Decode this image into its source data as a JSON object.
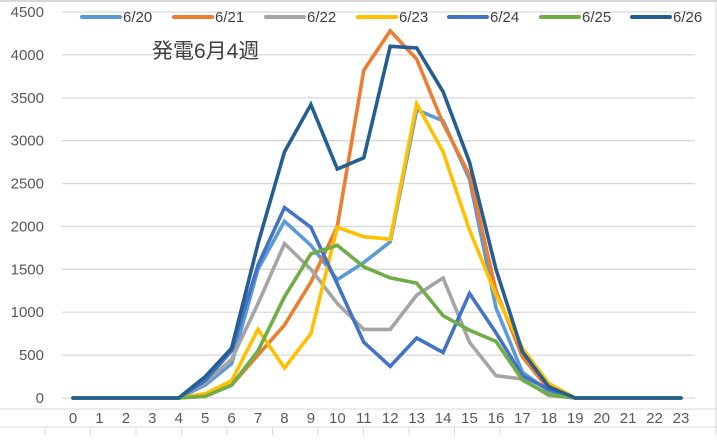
{
  "chart_data": {
    "type": "line",
    "title": "発電6月4週",
    "xlabel": "",
    "ylabel": "",
    "x": [
      0,
      1,
      2,
      3,
      4,
      5,
      6,
      7,
      8,
      9,
      10,
      11,
      12,
      13,
      14,
      15,
      16,
      17,
      18,
      19,
      20,
      21,
      22,
      23
    ],
    "ylim": [
      0,
      4500
    ],
    "yticks": [
      0,
      500,
      1000,
      1500,
      2000,
      2500,
      3000,
      3500,
      4000,
      4500
    ],
    "grid": true,
    "legend_position": "top",
    "series": [
      {
        "name": "6/20",
        "color": "#5B9BD5",
        "values": [
          0,
          0,
          0,
          0,
          0,
          150,
          400,
          1500,
          2060,
          1780,
          1380,
          1580,
          1820,
          3360,
          3230,
          2550,
          1050,
          300,
          80,
          0,
          0,
          0,
          0,
          0
        ]
      },
      {
        "name": "6/21",
        "color": "#ED7D31",
        "values": [
          0,
          0,
          0,
          0,
          0,
          20,
          150,
          500,
          850,
          1350,
          2000,
          3820,
          4280,
          3950,
          3200,
          2600,
          1250,
          480,
          100,
          0,
          0,
          0,
          0,
          0
        ]
      },
      {
        "name": "6/22",
        "color": "#A5A5A5",
        "values": [
          0,
          0,
          0,
          0,
          0,
          180,
          450,
          1100,
          1800,
          1500,
          1100,
          800,
          800,
          1200,
          1400,
          650,
          260,
          220,
          30,
          0,
          0,
          0,
          0,
          0
        ]
      },
      {
        "name": "6/23",
        "color": "#FFC000",
        "values": [
          0,
          0,
          0,
          0,
          0,
          50,
          200,
          800,
          350,
          750,
          1990,
          1880,
          1850,
          3430,
          2870,
          1960,
          1200,
          580,
          170,
          0,
          0,
          0,
          0,
          0
        ]
      },
      {
        "name": "6/24",
        "color": "#4472C4",
        "values": [
          0,
          0,
          0,
          0,
          0,
          200,
          550,
          1550,
          2220,
          1990,
          1330,
          650,
          370,
          700,
          530,
          1220,
          760,
          260,
          100,
          0,
          0,
          0,
          0,
          0
        ]
      },
      {
        "name": "6/25",
        "color": "#70AD47",
        "values": [
          0,
          0,
          0,
          0,
          0,
          20,
          150,
          550,
          1180,
          1680,
          1780,
          1530,
          1400,
          1340,
          960,
          790,
          660,
          210,
          40,
          0,
          0,
          0,
          0,
          0
        ]
      },
      {
        "name": "6/26",
        "color": "#255E91",
        "values": [
          0,
          0,
          0,
          0,
          0,
          250,
          580,
          1800,
          2870,
          3420,
          2670,
          2800,
          4100,
          4080,
          3570,
          2750,
          1500,
          540,
          130,
          0,
          0,
          0,
          0,
          0
        ]
      }
    ]
  }
}
